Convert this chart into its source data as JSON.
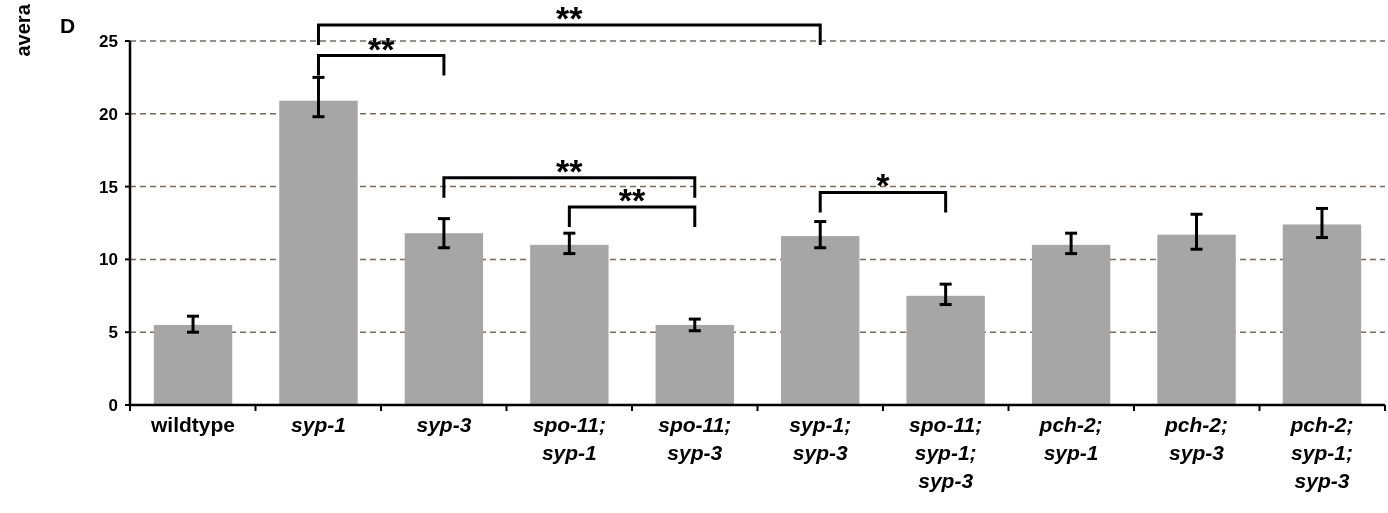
{
  "chart_data": {
    "type": "bar",
    "ylabel": "avera",
    "categories": [
      "wildtype",
      "syp-1",
      "syp-3",
      "spo-11;\nsyp-1",
      "spo-11;\nsyp-3",
      "syp-1;\nsyp-3",
      "spo-11;\nsyp-1;\nsyp-3",
      "pch-2;\nsyp-1",
      "pch-2;\nsyp-3",
      "pch-2;\nsyp-1;\nsyp-3"
    ],
    "values": [
      5.5,
      20.9,
      11.8,
      11.0,
      5.5,
      11.6,
      7.5,
      11.0,
      11.7,
      12.4
    ],
    "errors": [
      [
        5.0,
        6.1
      ],
      [
        19.8,
        22.5
      ],
      [
        10.8,
        12.8
      ],
      [
        10.4,
        11.8
      ],
      [
        5.1,
        5.9
      ],
      [
        10.8,
        12.6
      ],
      [
        6.9,
        8.3
      ],
      [
        10.4,
        11.8
      ],
      [
        10.7,
        13.1
      ],
      [
        11.5,
        13.5
      ]
    ],
    "color": "#a6a6a6",
    "ylim": [
      0,
      25
    ],
    "yticks": [
      0,
      5,
      10,
      15,
      20,
      25
    ],
    "grid": "y",
    "annotations": [
      "D",
      "**",
      "**",
      "**",
      "**",
      "*"
    ]
  }
}
